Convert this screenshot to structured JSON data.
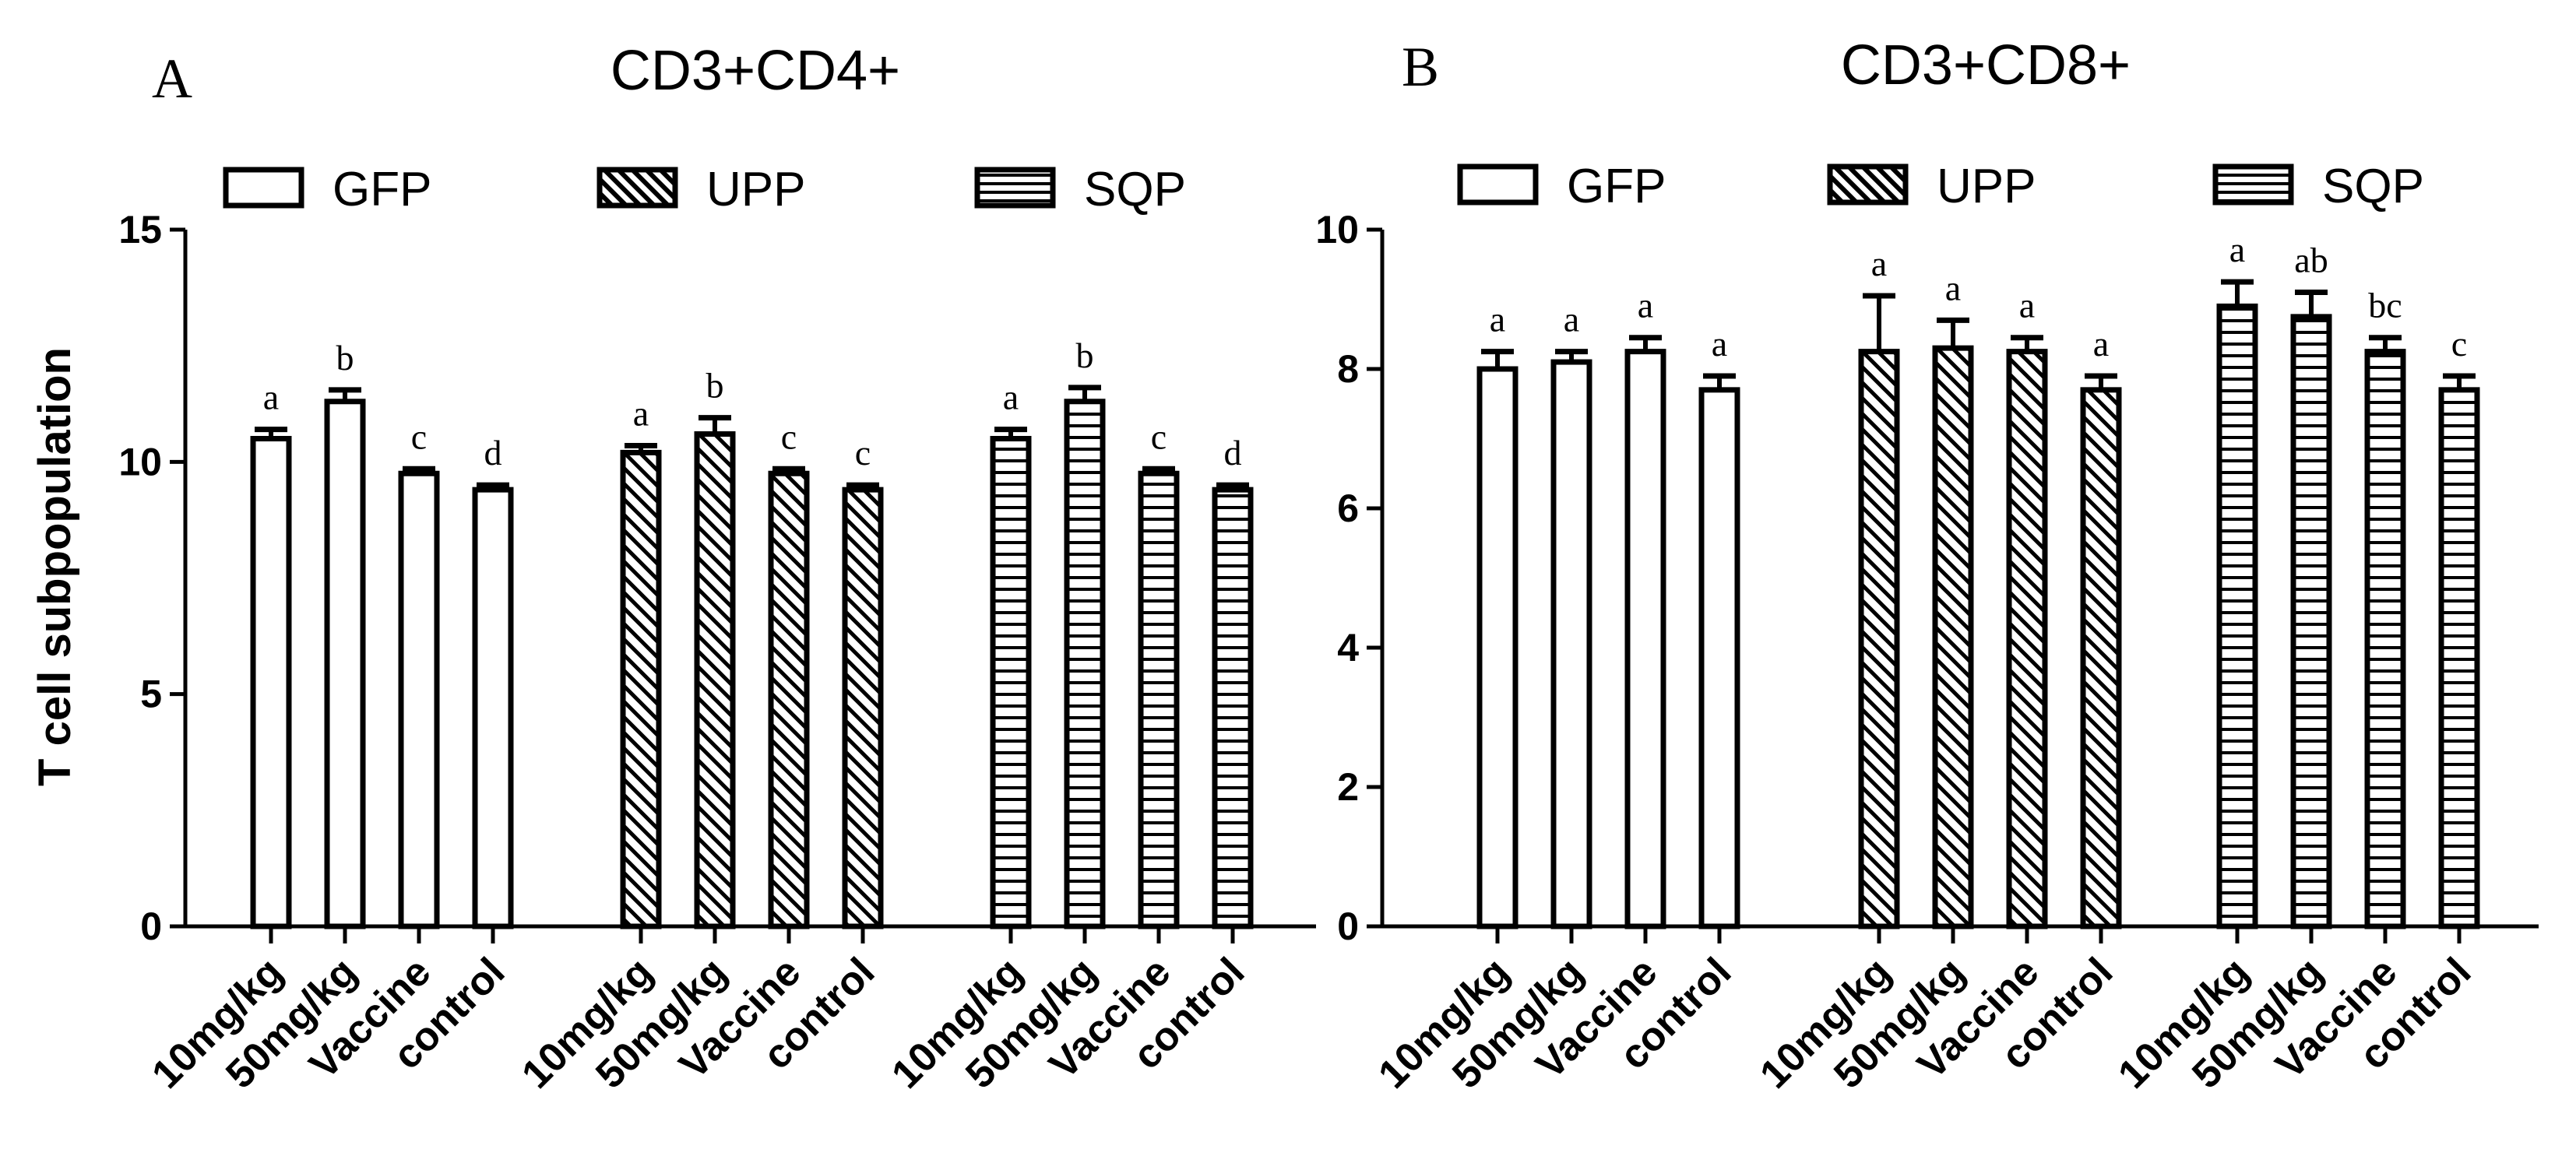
{
  "chart_data": [
    {
      "panel": "A",
      "type": "bar",
      "title": "CD3+CD4+",
      "ylabel": "T cell subpopulation",
      "xlabel": "",
      "ylim": [
        0,
        15
      ],
      "yticks": [
        0,
        5,
        10,
        15
      ],
      "legend": [
        "GFP",
        "UPP",
        "SQP"
      ],
      "legend_position": "top",
      "groups": [
        {
          "name": "GFP",
          "pattern": "none",
          "categories": [
            "10mg/kg",
            "50mg/kg",
            "Vaccine",
            "control"
          ],
          "values": [
            10.5,
            11.3,
            9.75,
            9.4
          ],
          "errors": [
            0.2,
            0.25,
            0.1,
            0.1
          ],
          "sig": [
            "a",
            "b",
            "c",
            "d"
          ]
        },
        {
          "name": "UPP",
          "pattern": "diagonal",
          "categories": [
            "10mg/kg",
            "50mg/kg",
            "Vaccine",
            "control"
          ],
          "values": [
            10.2,
            10.6,
            9.75,
            9.4
          ],
          "errors": [
            0.15,
            0.35,
            0.1,
            0.1
          ],
          "sig": [
            "a",
            "b",
            "c",
            "c"
          ]
        },
        {
          "name": "SQP",
          "pattern": "horizontal",
          "categories": [
            "10mg/kg",
            "50mg/kg",
            "Vaccine",
            "control"
          ],
          "values": [
            10.5,
            11.3,
            9.75,
            9.4
          ],
          "errors": [
            0.2,
            0.3,
            0.1,
            0.1
          ],
          "sig": [
            "a",
            "b",
            "c",
            "d"
          ]
        }
      ]
    },
    {
      "panel": "B",
      "type": "bar",
      "title": "CD3+CD8+",
      "ylabel": "",
      "xlabel": "",
      "ylim": [
        0,
        10
      ],
      "yticks": [
        0,
        2,
        4,
        6,
        8,
        10
      ],
      "legend": [
        "GFP",
        "UPP",
        "SQP"
      ],
      "legend_position": "top",
      "groups": [
        {
          "name": "GFP",
          "pattern": "none",
          "categories": [
            "10mg/kg",
            "50mg/kg",
            "Vaccine",
            "control"
          ],
          "values": [
            8.0,
            8.1,
            8.25,
            7.7
          ],
          "errors": [
            0.25,
            0.15,
            0.2,
            0.2
          ],
          "sig": [
            "a",
            "a",
            "a",
            "a"
          ]
        },
        {
          "name": "UPP",
          "pattern": "diagonal",
          "categories": [
            "10mg/kg",
            "50mg/kg",
            "Vaccine",
            "control"
          ],
          "values": [
            8.25,
            8.3,
            8.25,
            7.7
          ],
          "errors": [
            0.8,
            0.4,
            0.2,
            0.2
          ],
          "sig": [
            "a",
            "a",
            "a",
            "a"
          ]
        },
        {
          "name": "SQP",
          "pattern": "horizontal",
          "categories": [
            "10mg/kg",
            "50mg/kg",
            "Vaccine",
            "control"
          ],
          "values": [
            8.9,
            8.75,
            8.25,
            7.7
          ],
          "errors": [
            0.35,
            0.35,
            0.2,
            0.2
          ],
          "sig": [
            "a",
            "ab",
            "bc",
            "c"
          ]
        }
      ]
    }
  ]
}
